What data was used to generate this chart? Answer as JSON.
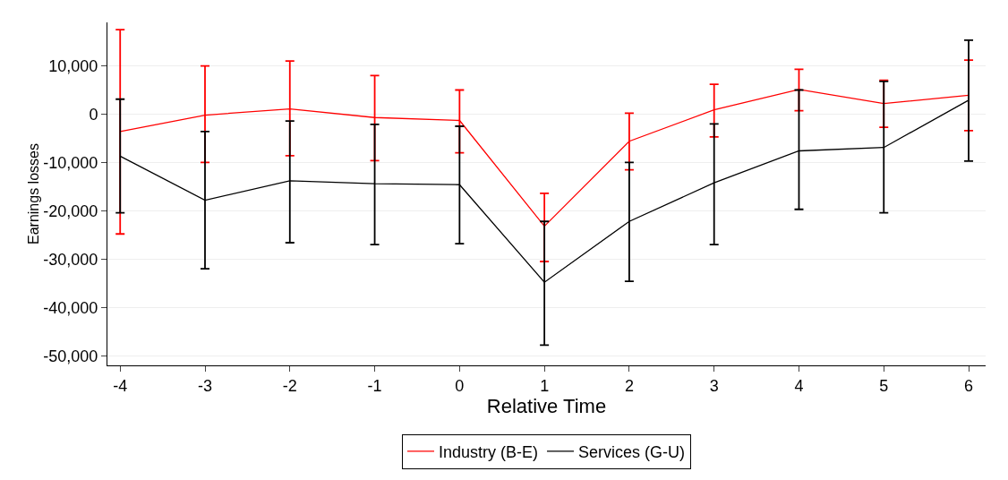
{
  "chart_data": {
    "type": "line",
    "xlabel": "Relative Time",
    "ylabel": "Earnings losses",
    "x": [
      -4,
      -3,
      -2,
      -1,
      0,
      1,
      2,
      3,
      4,
      5,
      6
    ],
    "series": [
      {
        "name": "Industry (B-E)",
        "color": "#ff0000",
        "values": [
          -3600,
          -200,
          1100,
          -700,
          -1300,
          -23200,
          -5600,
          900,
          5100,
          2200,
          3900
        ],
        "errors": [
          [
            -24800,
            17500
          ],
          [
            -10000,
            10000
          ],
          [
            -8600,
            11000
          ],
          [
            -9600,
            8000
          ],
          [
            -8000,
            5000
          ],
          [
            -30500,
            -16400
          ],
          [
            -11500,
            200
          ],
          [
            -4700,
            6200
          ],
          [
            700,
            9300
          ],
          [
            -2700,
            7000
          ],
          [
            -3400,
            11200
          ]
        ]
      },
      {
        "name": "Services (G-U)",
        "color": "#000000",
        "values": [
          -8700,
          -17800,
          -13800,
          -14400,
          -14600,
          -34800,
          -22200,
          -14200,
          -7600,
          -6900,
          2900
        ],
        "errors": [
          [
            -20400,
            3100
          ],
          [
            -32000,
            -3600
          ],
          [
            -26600,
            -1400
          ],
          [
            -27000,
            -2100
          ],
          [
            -26800,
            -2500
          ],
          [
            -47800,
            -22200
          ],
          [
            -34600,
            -10000
          ],
          [
            -27000,
            -2000
          ],
          [
            -19700,
            5000
          ],
          [
            -20400,
            6800
          ],
          [
            -9700,
            15300
          ]
        ]
      }
    ],
    "xlim": [
      -4.15,
      6.2
    ],
    "xticks": [
      -4,
      -3,
      -2,
      -1,
      0,
      1,
      2,
      3,
      4,
      5,
      6
    ],
    "ylim": [
      -52000,
      19000
    ],
    "yticks": [
      {
        "value": -50000,
        "label": "-50,000"
      },
      {
        "value": -40000,
        "label": "-40,000"
      },
      {
        "value": -30000,
        "label": "-30,000"
      },
      {
        "value": -20000,
        "label": "-20,000"
      },
      {
        "value": -10000,
        "label": "-10,000"
      },
      0,
      {
        "value": 10000,
        "label": "10,000"
      }
    ],
    "grid": "y",
    "legend": "bottom",
    "marker": "none",
    "line_style": "solid"
  }
}
